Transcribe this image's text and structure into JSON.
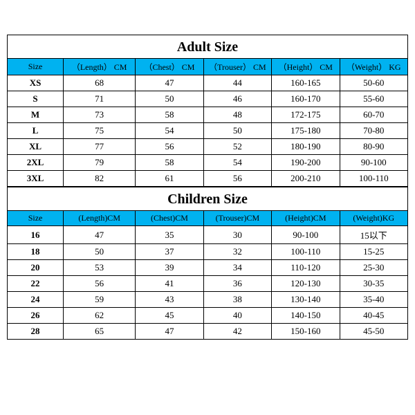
{
  "styling": {
    "header_bg": "#00b2f0",
    "border_color": "#000000",
    "title_font_size": 20,
    "body_font_size": 13,
    "font_family": "Times New Roman"
  },
  "adult": {
    "title": "Adult Size",
    "headers": [
      "Size",
      "（Length） CM",
      "（Chest） CM",
      "（Trouser） CM",
      "（Height） CM",
      "（Weight） KG"
    ],
    "rows": [
      [
        "XS",
        "68",
        "47",
        "44",
        "160-165",
        "50-60"
      ],
      [
        "S",
        "71",
        "50",
        "46",
        "160-170",
        "55-60"
      ],
      [
        "M",
        "73",
        "58",
        "48",
        "172-175",
        "60-70"
      ],
      [
        "L",
        "75",
        "54",
        "50",
        "175-180",
        "70-80"
      ],
      [
        "XL",
        "77",
        "56",
        "52",
        "180-190",
        "80-90"
      ],
      [
        "2XL",
        "79",
        "58",
        "54",
        "190-200",
        "90-100"
      ],
      [
        "3XL",
        "82",
        "61",
        "56",
        "200-210",
        "100-110"
      ]
    ]
  },
  "children": {
    "title": "Children Size",
    "headers": [
      "Size",
      "(Length)CM",
      "(Chest)CM",
      "(Trouser)CM",
      "(Height)CM",
      "(Weight)KG"
    ],
    "rows": [
      [
        "16",
        "47",
        "35",
        "30",
        "90-100",
        "15以下"
      ],
      [
        "18",
        "50",
        "37",
        "32",
        "100-110",
        "15-25"
      ],
      [
        "20",
        "53",
        "39",
        "34",
        "110-120",
        "25-30"
      ],
      [
        "22",
        "56",
        "41",
        "36",
        "120-130",
        "30-35"
      ],
      [
        "24",
        "59",
        "43",
        "38",
        "130-140",
        "35-40"
      ],
      [
        "26",
        "62",
        "45",
        "40",
        "140-150",
        "40-45"
      ],
      [
        "28",
        "65",
        "47",
        "42",
        "150-160",
        "45-50"
      ]
    ]
  }
}
